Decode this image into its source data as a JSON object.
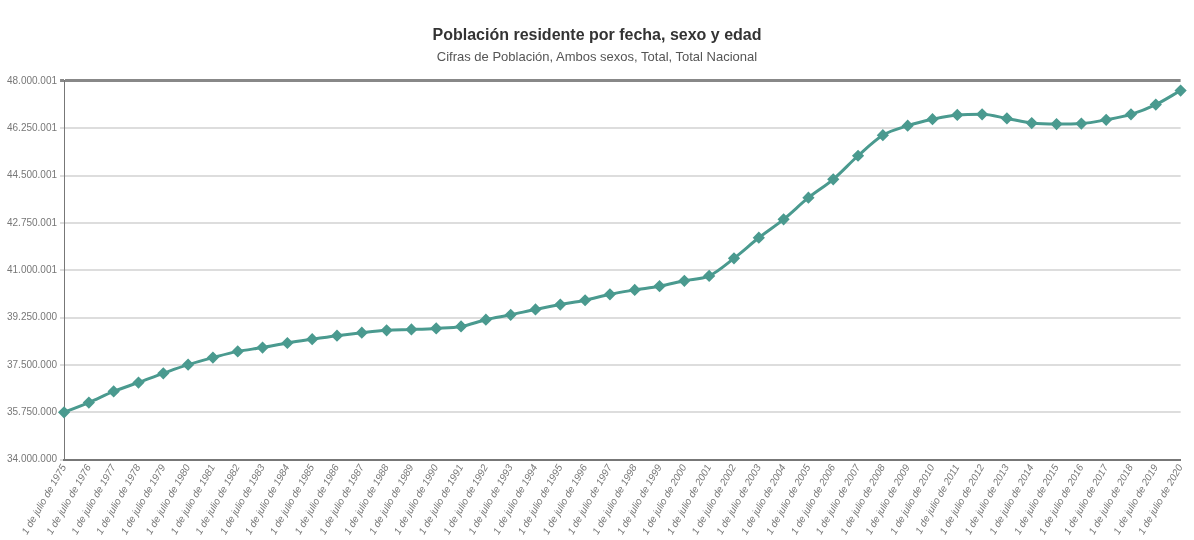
{
  "chart_data": {
    "type": "line",
    "title": "Población residente por fecha, sexo y edad",
    "subtitle": "Cifras de Población, Ambos sexos, Total, Total Nacional",
    "categories": [
      "1 de julio de 1975",
      "1 de julio de 1976",
      "1 de julio de 1977",
      "1 de julio de 1978",
      "1 de julio de 1979",
      "1 de julio de 1980",
      "1 de julio de 1981",
      "1 de julio de 1982",
      "1 de julio de 1983",
      "1 de julio de 1984",
      "1 de julio de 1985",
      "1 de julio de 1986",
      "1 de julio de 1987",
      "1 de julio de 1988",
      "1 de julio de 1989",
      "1 de julio de 1990",
      "1 de julio de 1991",
      "1 de julio de 1992",
      "1 de julio de 1993",
      "1 de julio de 1994",
      "1 de julio de 1995",
      "1 de julio de 1996",
      "1 de julio de 1997",
      "1 de julio de 1998",
      "1 de julio de 1999",
      "1 de julio de 2000",
      "1 de julio de 2001",
      "1 de julio de 2002",
      "1 de julio de 2003",
      "1 de julio de 2004",
      "1 de julio de 2005",
      "1 de julio de 2006",
      "1 de julio de 2007",
      "1 de julio de 2008",
      "1 de julio de 2009",
      "1 de julio de 2010",
      "1 de julio de 2011",
      "1 de julio de 2012",
      "1 de julio de 2013",
      "1 de julio de 2014",
      "1 de julio de 2015",
      "1 de julio de 2016",
      "1 de julio de 2017",
      "1 de julio de 2018",
      "1 de julio de 2019",
      "1 de julio de 2020"
    ],
    "series": [
      {
        "color": "#4a9a8f",
        "values": [
          35750000,
          36110000,
          36520000,
          36850000,
          37190000,
          37510000,
          37770000,
          38000000,
          38140000,
          38310000,
          38450000,
          38580000,
          38690000,
          38780000,
          38810000,
          38850000,
          38920000,
          39170000,
          39350000,
          39550000,
          39730000,
          39890000,
          40110000,
          40270000,
          40410000,
          40610000,
          40790000,
          41440000,
          42200000,
          42880000,
          43680000,
          44360000,
          45230000,
          45990000,
          46340000,
          46580000,
          46740000,
          46760000,
          46610000,
          46440000,
          46400000,
          46420000,
          46560000,
          46760000,
          47120000,
          47640000
        ]
      }
    ],
    "ylim": [
      34000000,
      48000001
    ],
    "yticks": [
      {
        "value": 34000000,
        "label": "34.000.000"
      },
      {
        "value": 35750000,
        "label": "35.750.000"
      },
      {
        "value": 37500000,
        "label": "37.500.000"
      },
      {
        "value": 39250000,
        "label": "39.250.000"
      },
      {
        "value": 41000001,
        "label": "41.000.001"
      },
      {
        "value": 42750001,
        "label": "42.750.001"
      },
      {
        "value": 44500001,
        "label": "44.500.001"
      },
      {
        "value": 46250001,
        "label": "46.250.001"
      },
      {
        "value": 48000001,
        "label": "48.000.001"
      }
    ],
    "grid": "y",
    "legend": false,
    "marker": "diamond",
    "line_style": "solid"
  }
}
